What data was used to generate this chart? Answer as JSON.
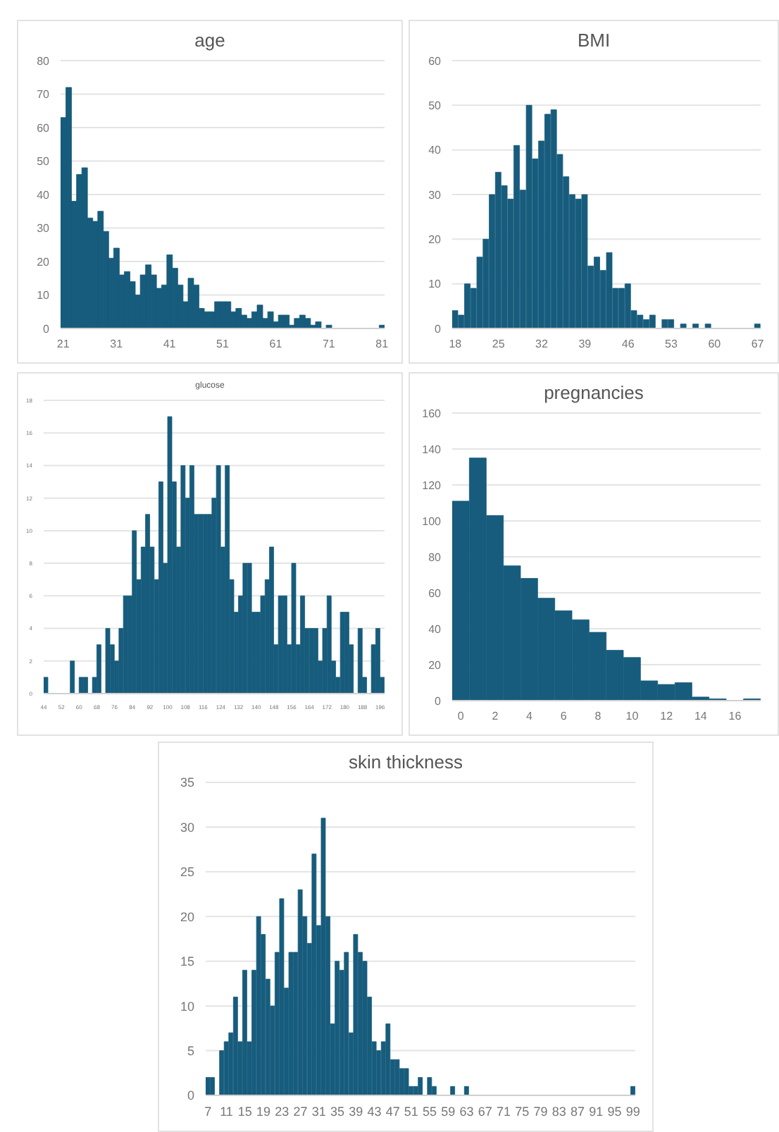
{
  "chart_data": [
    {
      "type": "histogram",
      "title": "age",
      "color": "#175c7c",
      "grid": "y",
      "xlim": [
        20.5,
        81.5
      ],
      "xticks": [
        21,
        31,
        41,
        51,
        61,
        71,
        81
      ],
      "ylim": [
        0,
        80
      ],
      "yticks": [
        0,
        10,
        20,
        30,
        40,
        50,
        60,
        70,
        80
      ],
      "bins": [
        20.5,
        21.5,
        22.5,
        23.5,
        24.5,
        25.5,
        26.5,
        27.5,
        28.5,
        29.5,
        30.5,
        31.5,
        32.5,
        33.5,
        34.5,
        35.5,
        36.5,
        37.5,
        38.5,
        39.5,
        40.5,
        41.5,
        42.5,
        43.5,
        44.5,
        45.5,
        46.5,
        47.5,
        48.5,
        49.5,
        50.5,
        51.5,
        52.5,
        53.5,
        54.5,
        55.5,
        56.5,
        57.5,
        58.5,
        59.5,
        60.5,
        61.5,
        62.5,
        63.5,
        64.5,
        65.5,
        66.5,
        67.5,
        68.5,
        69.5,
        70.5,
        71.5,
        72.5,
        73.5,
        74.5,
        75.5,
        76.5,
        77.5,
        78.5,
        79.5,
        80.5,
        81.5
      ],
      "values": [
        63,
        72,
        38,
        46,
        48,
        33,
        32,
        35,
        29,
        21,
        24,
        16,
        17,
        14,
        10,
        16,
        19,
        16,
        12,
        13,
        22,
        18,
        13,
        8,
        15,
        13,
        6,
        5,
        5,
        8,
        8,
        8,
        5,
        6,
        4,
        3,
        5,
        7,
        3,
        5,
        2,
        4,
        4,
        1,
        3,
        4,
        3,
        1,
        2,
        0,
        1,
        0,
        0,
        0,
        0,
        0,
        0,
        0,
        0,
        0,
        1
      ]
    },
    {
      "type": "histogram",
      "title": "BMI",
      "color": "#175c7c",
      "grid": "y",
      "xlim": [
        17.5,
        67.5
      ],
      "xticks": [
        18,
        25,
        32,
        39,
        46,
        53,
        60,
        67
      ],
      "ylim": [
        0,
        60
      ],
      "yticks": [
        0,
        10,
        20,
        30,
        40,
        50,
        60
      ],
      "bins": [
        17.5,
        18.5,
        19.5,
        20.5,
        21.5,
        22.5,
        23.5,
        24.5,
        25.5,
        26.5,
        27.5,
        28.5,
        29.5,
        30.5,
        31.5,
        32.5,
        33.5,
        34.5,
        35.5,
        36.5,
        37.5,
        38.5,
        39.5,
        40.5,
        41.5,
        42.5,
        43.5,
        44.5,
        45.5,
        46.5,
        47.5,
        48.5,
        49.5,
        50.5,
        51.5,
        52.5,
        53.5,
        54.5,
        55.5,
        56.5,
        57.5,
        58.5,
        59.5,
        60.5,
        61.5,
        62.5,
        63.5,
        64.5,
        65.5,
        66.5,
        67.5
      ],
      "values": [
        4,
        3,
        10,
        9,
        16,
        20,
        30,
        35,
        32,
        29,
        41,
        31,
        50,
        38,
        42,
        48,
        49,
        39,
        34,
        30,
        29,
        30,
        14,
        16,
        13,
        17,
        9,
        9,
        10,
        4,
        3,
        2,
        3,
        0,
        2,
        2,
        0,
        1,
        0,
        1,
        0,
        1,
        0,
        0,
        0,
        0,
        0,
        0,
        0,
        1
      ]
    },
    {
      "type": "histogram",
      "title": "glucose",
      "color": "#175c7c",
      "grid": "y",
      "xlim": [
        44,
        198
      ],
      "xticks": [
        44,
        52,
        60,
        68,
        76,
        84,
        92,
        100,
        108,
        116,
        124,
        132,
        140,
        148,
        156,
        164,
        172,
        180,
        188,
        196
      ],
      "ylim": [
        0,
        18
      ],
      "yticks": [
        0,
        2,
        4,
        6,
        8,
        10,
        12,
        14,
        16,
        18
      ],
      "bins": [
        44,
        46,
        48,
        50,
        52,
        54,
        56,
        58,
        60,
        62,
        64,
        66,
        68,
        70,
        72,
        74,
        76,
        78,
        80,
        82,
        84,
        86,
        88,
        90,
        92,
        94,
        96,
        98,
        100,
        102,
        104,
        106,
        108,
        110,
        112,
        114,
        116,
        118,
        120,
        122,
        124,
        126,
        128,
        130,
        132,
        134,
        136,
        138,
        140,
        142,
        144,
        146,
        148,
        150,
        152,
        154,
        156,
        158,
        160,
        162,
        164,
        166,
        168,
        170,
        172,
        174,
        176,
        178,
        180,
        182,
        184,
        186,
        188,
        190,
        192,
        194,
        196,
        198
      ],
      "values": [
        1,
        0,
        0,
        0,
        0,
        0,
        2,
        0,
        1,
        1,
        0,
        1,
        3,
        0,
        4,
        3,
        2,
        4,
        6,
        6,
        10,
        7,
        9,
        11,
        9,
        7,
        13,
        8,
        17,
        13,
        9,
        14,
        12,
        14,
        11,
        11,
        11,
        11,
        12,
        14,
        9,
        14,
        7,
        5,
        6,
        8,
        8,
        5,
        5,
        6,
        7,
        9,
        3,
        6,
        6,
        3,
        8,
        3,
        6,
        4,
        4,
        4,
        2,
        4,
        6,
        2,
        1,
        5,
        5,
        3,
        0,
        4,
        1,
        0,
        3,
        4,
        1
      ]
    },
    {
      "type": "histogram",
      "title": "pregnancies",
      "color": "#175c7c",
      "grid": "y",
      "xlim": [
        -0.5,
        17.5
      ],
      "xticks": [
        0,
        2,
        4,
        6,
        8,
        10,
        12,
        14,
        16
      ],
      "ylim": [
        0,
        160
      ],
      "yticks": [
        0,
        20,
        40,
        60,
        80,
        100,
        120,
        140,
        160
      ],
      "bins": [
        -0.5,
        0.5,
        1.5,
        2.5,
        3.5,
        4.5,
        5.5,
        6.5,
        7.5,
        8.5,
        9.5,
        10.5,
        11.5,
        12.5,
        13.5,
        14.5,
        15.5,
        16.5,
        17.5
      ],
      "values": [
        111,
        135,
        103,
        75,
        68,
        57,
        50,
        45,
        38,
        28,
        24,
        11,
        9,
        10,
        2,
        1,
        0,
        1
      ]
    },
    {
      "type": "histogram",
      "title": "skin thickness",
      "color": "#175c7c",
      "grid": "y",
      "xlim": [
        6.5,
        99.5
      ],
      "xticks": [
        7,
        11,
        15,
        19,
        23,
        27,
        31,
        35,
        39,
        43,
        47,
        51,
        55,
        59,
        63,
        67,
        71,
        75,
        79,
        83,
        87,
        91,
        95,
        99
      ],
      "ylim": [
        0,
        35
      ],
      "yticks": [
        0,
        5,
        10,
        15,
        20,
        25,
        30,
        35
      ],
      "bins": [
        6.5,
        7.5,
        8.5,
        9.5,
        10.5,
        11.5,
        12.5,
        13.5,
        14.5,
        15.5,
        16.5,
        17.5,
        18.5,
        19.5,
        20.5,
        21.5,
        22.5,
        23.5,
        24.5,
        25.5,
        26.5,
        27.5,
        28.5,
        29.5,
        30.5,
        31.5,
        32.5,
        33.5,
        34.5,
        35.5,
        36.5,
        37.5,
        38.5,
        39.5,
        40.5,
        41.5,
        42.5,
        43.5,
        44.5,
        45.5,
        46.5,
        47.5,
        48.5,
        49.5,
        50.5,
        51.5,
        52.5,
        53.5,
        54.5,
        55.5,
        56.5,
        57.5,
        58.5,
        59.5,
        60.5,
        61.5,
        62.5,
        63.5,
        64.5,
        65.5,
        66.5,
        67.5,
        68.5,
        69.5,
        70.5,
        71.5,
        72.5,
        73.5,
        74.5,
        75.5,
        76.5,
        77.5,
        78.5,
        79.5,
        80.5,
        81.5,
        82.5,
        83.5,
        84.5,
        85.5,
        86.5,
        87.5,
        88.5,
        89.5,
        90.5,
        91.5,
        92.5,
        93.5,
        94.5,
        95.5,
        96.5,
        97.5,
        98.5,
        99.5
      ],
      "values": [
        2,
        2,
        0,
        5,
        6,
        7,
        11,
        6,
        14,
        6,
        14,
        20,
        18,
        13,
        10,
        16,
        22,
        12,
        16,
        16,
        23,
        20,
        17,
        27,
        19,
        31,
        20,
        8,
        15,
        14,
        16,
        7,
        18,
        16,
        15,
        11,
        6,
        5,
        6,
        8,
        4,
        4,
        3,
        3,
        1,
        1,
        2,
        0,
        2,
        1,
        0,
        0,
        0,
        1,
        0,
        0,
        1,
        0,
        0,
        0,
        0,
        0,
        0,
        0,
        0,
        0,
        0,
        0,
        0,
        0,
        0,
        0,
        0,
        0,
        0,
        0,
        0,
        0,
        0,
        0,
        0,
        0,
        0,
        0,
        0,
        0,
        0,
        0,
        0,
        0,
        0,
        0,
        1
      ]
    }
  ]
}
